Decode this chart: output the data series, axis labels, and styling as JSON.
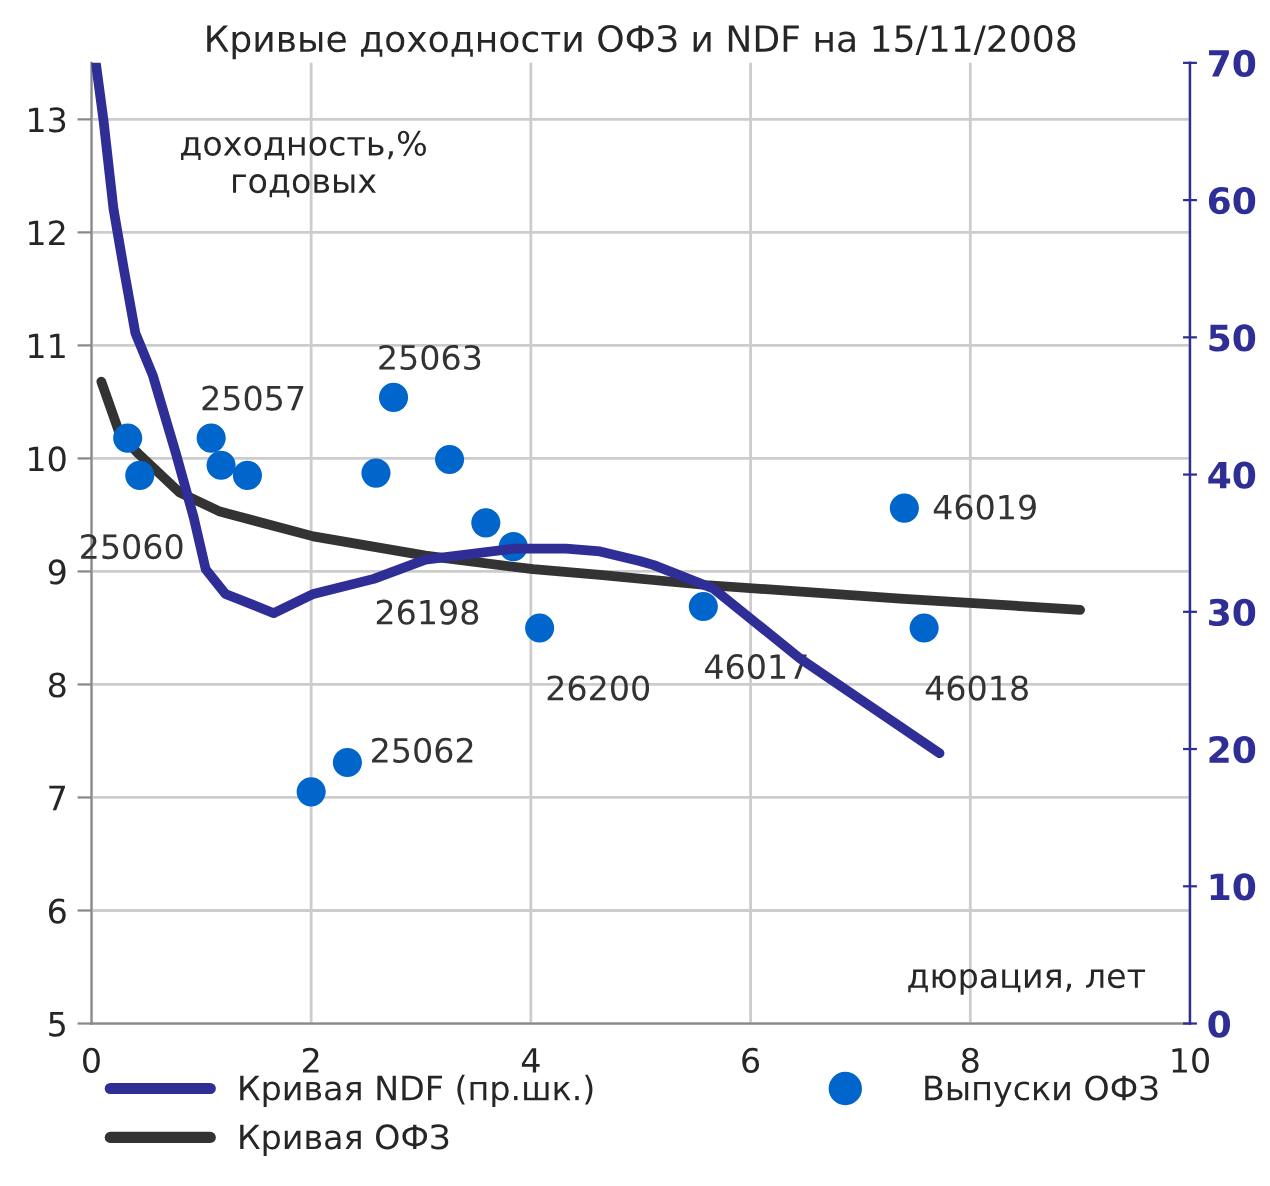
{
  "chart_data": {
    "type": "line",
    "title": "Кривые доходности ОФЗ и NDF на 15/11/2008",
    "xlabel": "дюрация, лет",
    "ylabel": "доходность,%\nгодовых",
    "xlim": [
      0,
      10
    ],
    "xticks": [
      0,
      2,
      4,
      6,
      8,
      10
    ],
    "ylim": [
      5,
      13.5
    ],
    "yticks": [
      5,
      6,
      7,
      8,
      9,
      10,
      11,
      12,
      13
    ],
    "y2lim": [
      0,
      70
    ],
    "y2ticks": [
      0,
      10,
      20,
      30,
      40,
      50,
      60,
      70
    ],
    "grid": true,
    "legend": "bottom",
    "series": [
      {
        "name": "Кривая NDF (пр.шк.)",
        "axis": "y2",
        "color": "#2e2e96",
        "x": [
          0.04,
          0.11,
          0.2,
          0.29,
          0.4,
          0.56,
          0.77,
          0.93,
          1.04,
          1.22,
          1.66,
          2.02,
          2.57,
          3.04,
          3.84,
          4.32,
          4.63,
          4.99,
          5.12,
          5.66,
          6.45,
          7.72
        ],
        "values": [
          70,
          65.8,
          59.4,
          55.2,
          50.3,
          47.2,
          41.5,
          36.9,
          33.1,
          31.3,
          29.9,
          31.3,
          32.4,
          33.8,
          34.6,
          34.6,
          34.4,
          33.7,
          33.4,
          31.7,
          26.6,
          19.7
        ]
      },
      {
        "name": "Кривая ОФЗ",
        "color": "#333333",
        "x": [
          0.09,
          0.26,
          0.44,
          0.8,
          1.17,
          2.02,
          3.04,
          4.02,
          4.63,
          5.59,
          7.36,
          9.0
        ],
        "values": [
          10.68,
          10.21,
          10.03,
          9.7,
          9.53,
          9.31,
          9.14,
          9.02,
          8.97,
          8.88,
          8.76,
          8.66
        ]
      },
      {
        "name": "Выпуски ОФЗ",
        "type": "scatter",
        "marker": "circle",
        "color": "#0066cc",
        "x": [
          0.33,
          0.44,
          1.09,
          1.18,
          1.42,
          2.0,
          2.33,
          2.75,
          2.59,
          3.26,
          3.59,
          3.84,
          4.08,
          5.57,
          7.4,
          7.58
        ],
        "values": [
          10.18,
          9.85,
          10.18,
          9.94,
          9.85,
          7.05,
          7.31,
          10.54,
          9.87,
          9.99,
          9.43,
          9.22,
          8.5,
          8.69,
          9.56,
          8.5
        ]
      }
    ],
    "annotations": [
      {
        "text": "25060",
        "x": 0.44,
        "y": 9.85
      },
      {
        "text": "25057",
        "x": 1.09,
        "y": 10.18
      },
      {
        "text": "25063",
        "x": 2.75,
        "y": 10.54
      },
      {
        "text": "25062",
        "x": 2.33,
        "y": 7.31
      },
      {
        "text": "26198",
        "x": 3.84,
        "y": 9.22
      },
      {
        "text": "26200",
        "x": 4.08,
        "y": 8.5
      },
      {
        "text": "46017",
        "x": 5.57,
        "y": 8.69
      },
      {
        "text": "46019",
        "x": 7.4,
        "y": 9.56
      },
      {
        "text": "46018",
        "x": 7.58,
        "y": 8.5
      }
    ]
  }
}
